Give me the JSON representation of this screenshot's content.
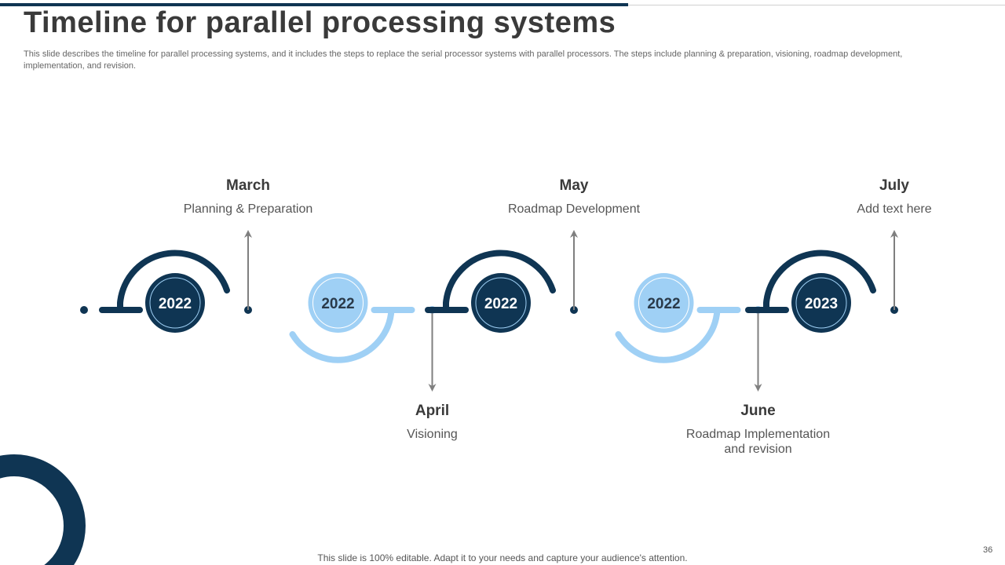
{
  "title": "Timeline for parallel processing systems",
  "description": "This slide describes the timeline for parallel processing systems, and it includes the steps to replace the serial processor systems with parallel processors. The steps include planning & preparation, visioning, roadmap development, implementation, and revision.",
  "colors": {
    "dark": "#0f3553",
    "light": "#9fd0f5",
    "arrow": "#7f7f7f"
  },
  "milestones": [
    {
      "year": "2022",
      "month": "March",
      "text": "Planning & Preparation",
      "style": "dark",
      "position": "top"
    },
    {
      "year": "2022",
      "month": "April",
      "text": "Visioning",
      "style": "light",
      "position": "bottom"
    },
    {
      "year": "2022",
      "month": "May",
      "text": "Roadmap Development",
      "style": "dark",
      "position": "top"
    },
    {
      "year": "2022",
      "month": "June",
      "text": "Roadmap Implementation and revision",
      "style": "light",
      "position": "bottom"
    },
    {
      "year": "2023",
      "month": "July",
      "text": "Add text here",
      "style": "dark",
      "position": "top"
    }
  ],
  "footer": "This slide is 100% editable. Adapt it to your needs and capture your audience's attention.",
  "page_number": "36"
}
